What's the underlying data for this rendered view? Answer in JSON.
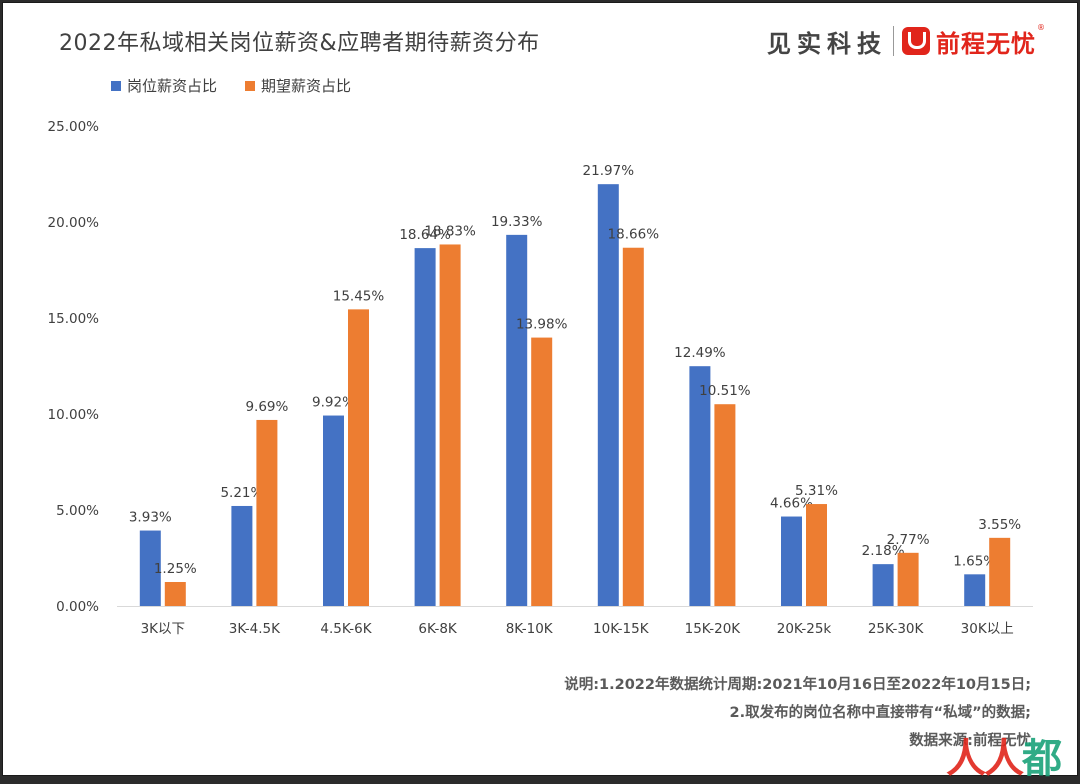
{
  "header": {
    "title": "2022年私域相关岗位薪资&应聘者期待薪资分布",
    "brand_jianshi": "见实科技",
    "brand_51job": "前程无忧",
    "brand_reg": "®"
  },
  "colors": {
    "series_blue": "#4472c4",
    "series_orange": "#ed7d31"
  },
  "chart_data": {
    "type": "bar",
    "categories": [
      "3K以下",
      "3K-4.5K",
      "4.5K-6K",
      "6K-8K",
      "8K-10K",
      "10K-15K",
      "15K-20K",
      "20K-25k",
      "25K-30K",
      "30K以上"
    ],
    "series": [
      {
        "name": "岗位薪资占比",
        "values": [
          3.93,
          5.21,
          9.92,
          18.64,
          19.33,
          21.97,
          12.49,
          4.66,
          2.18,
          1.65
        ]
      },
      {
        "name": "期望薪资占比",
        "values": [
          1.25,
          9.69,
          15.45,
          18.83,
          13.98,
          18.66,
          10.51,
          5.31,
          2.77,
          3.55
        ]
      }
    ],
    "y_ticks": [
      "0.00%",
      "5.00%",
      "10.00%",
      "15.00%",
      "20.00%",
      "25.00%"
    ],
    "ylim": [
      0,
      25
    ],
    "value_suffix": "%",
    "legend_position": "top-left",
    "grid": false
  },
  "footer": {
    "note1": "说明:1.2022年数据统计周期:2021年10月16日至2022年10月15日;",
    "note2": "2.取发布的岗位名称中直接带有“私域”的数据;",
    "source": "数据来源:前程无忧"
  },
  "watermark": {
    "part1": "人人",
    "part2": "都"
  }
}
